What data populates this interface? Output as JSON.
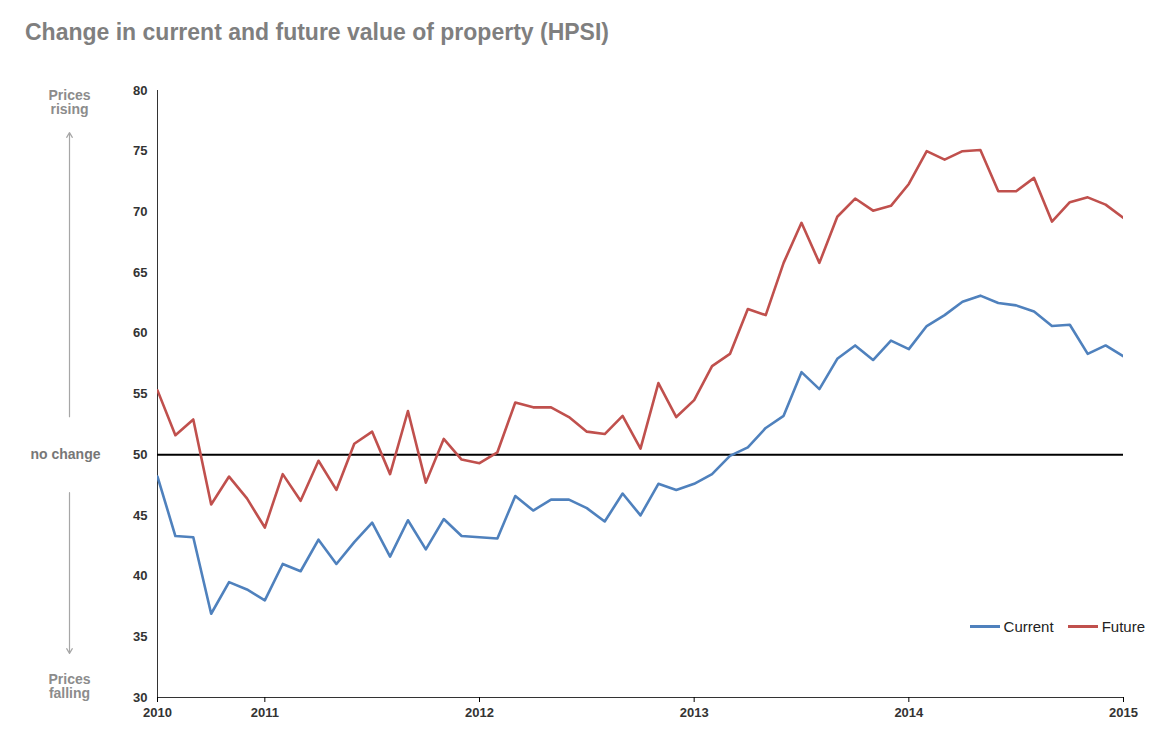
{
  "chart_data": {
    "type": "line",
    "title": "Change in current and future value of property (HPSI)",
    "categories": [
      "2010",
      null,
      null,
      null,
      null,
      null,
      "2011",
      null,
      null,
      null,
      null,
      null,
      null,
      null,
      null,
      null,
      null,
      null,
      "2012",
      null,
      null,
      null,
      null,
      null,
      null,
      null,
      null,
      null,
      null,
      null,
      "2013",
      null,
      null,
      null,
      null,
      null,
      null,
      null,
      null,
      null,
      null,
      null,
      "2014",
      null,
      null,
      null,
      null,
      null,
      null,
      null,
      null,
      null,
      null,
      null,
      "2015"
    ],
    "series": [
      {
        "name": "Current",
        "color": "#4f81bd",
        "values": [
          48.2,
          43.3,
          43.2,
          36.9,
          39.5,
          38.9,
          38.0,
          41.0,
          40.4,
          43.0,
          41.0,
          42.8,
          44.4,
          41.6,
          44.6,
          42.2,
          44.7,
          43.3,
          43.2,
          43.1,
          46.6,
          45.4,
          46.3,
          46.3,
          45.6,
          44.5,
          46.8,
          45.0,
          47.6,
          47.1,
          47.6,
          48.4,
          49.9,
          50.6,
          52.2,
          53.2,
          56.8,
          55.4,
          57.9,
          59.0,
          57.8,
          59.4,
          58.7,
          60.6,
          61.5,
          62.6,
          63.1,
          62.5,
          62.3,
          61.8,
          60.6,
          60.7,
          58.3,
          59.0,
          58.1
        ]
      },
      {
        "name": "Future",
        "color": "#c0504d",
        "values": [
          55.3,
          51.6,
          52.9,
          45.9,
          48.2,
          46.4,
          44.0,
          48.4,
          46.2,
          49.5,
          47.1,
          50.9,
          51.9,
          48.4,
          53.6,
          47.7,
          51.3,
          49.6,
          49.3,
          50.2,
          54.3,
          53.9,
          53.9,
          53.1,
          51.9,
          51.7,
          53.2,
          50.5,
          55.9,
          53.1,
          54.5,
          57.3,
          58.3,
          62.0,
          61.5,
          65.8,
          69.1,
          65.8,
          69.6,
          71.1,
          70.1,
          70.5,
          72.3,
          75.0,
          74.3,
          75.0,
          75.1,
          71.7,
          71.7,
          72.8,
          69.2,
          70.8,
          71.2,
          70.6,
          69.5
        ]
      }
    ],
    "ylim": [
      30,
      80
    ],
    "yticks": [
      30,
      35,
      40,
      45,
      50,
      55,
      60,
      65,
      70,
      75,
      80
    ],
    "grid": false,
    "legend": "lower right",
    "reference_line": 50,
    "y_annotations": {
      "top": "Prices rising",
      "middle": "no change",
      "bottom": "Prices falling"
    }
  }
}
